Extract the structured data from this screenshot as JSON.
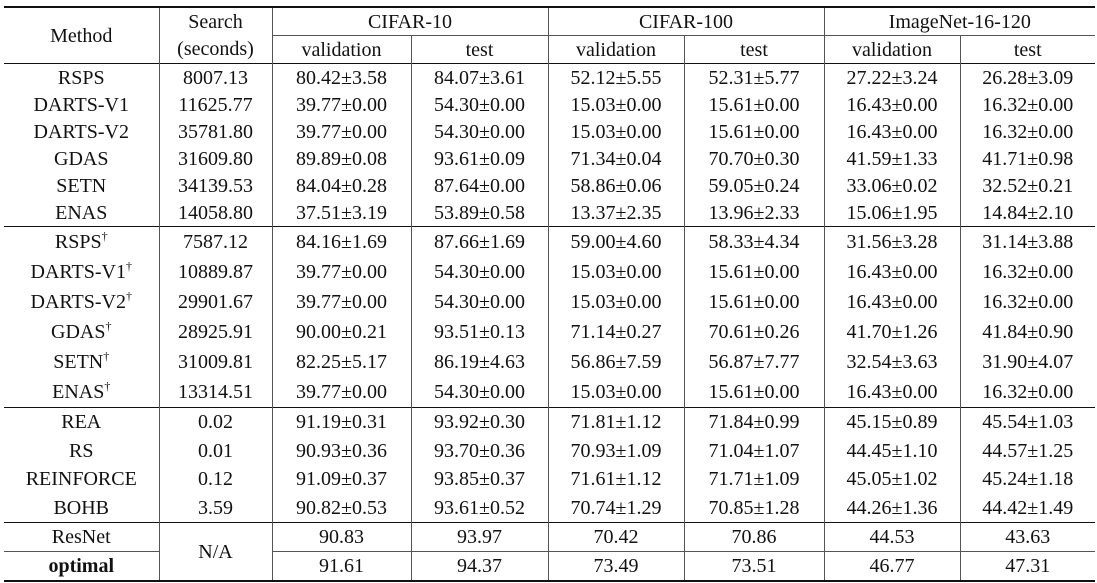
{
  "header": {
    "method": "Method",
    "search_line1": "Search",
    "search_line2": "(seconds)",
    "datasets": [
      "CIFAR-10",
      "CIFAR-100",
      "ImageNet-16-120"
    ],
    "validation": "validation",
    "test": "test"
  },
  "rows": [
    {
      "method": "RSPS",
      "mark": "",
      "search": "8007.13",
      "values": [
        "80.42±3.58",
        "84.07±3.61",
        "52.12±5.55",
        "52.31±5.77",
        "27.22±3.24",
        "26.28±3.09"
      ]
    },
    {
      "method": "DARTS-V1",
      "mark": "",
      "search": "11625.77",
      "values": [
        "39.77±0.00",
        "54.30±0.00",
        "15.03±0.00",
        "15.61±0.00",
        "16.43±0.00",
        "16.32±0.00"
      ]
    },
    {
      "method": "DARTS-V2",
      "mark": "",
      "search": "35781.80",
      "values": [
        "39.77±0.00",
        "54.30±0.00",
        "15.03±0.00",
        "15.61±0.00",
        "16.43±0.00",
        "16.32±0.00"
      ]
    },
    {
      "method": "GDAS",
      "mark": "",
      "search": "31609.80",
      "values": [
        "89.89±0.08",
        "93.61±0.09",
        "71.34±0.04",
        "70.70±0.30",
        "41.59±1.33",
        "41.71±0.98"
      ]
    },
    {
      "method": "SETN",
      "mark": "",
      "search": "34139.53",
      "values": [
        "84.04±0.28",
        "87.64±0.00",
        "58.86±0.06",
        "59.05±0.24",
        "33.06±0.02",
        "32.52±0.21"
      ]
    },
    {
      "method": "ENAS",
      "mark": "",
      "search": "14058.80",
      "values": [
        "37.51±3.19",
        "53.89±0.58",
        "13.37±2.35",
        "13.96±2.33",
        "15.06±1.95",
        "14.84±2.10"
      ]
    },
    {
      "method": "RSPS",
      "mark": "†",
      "search": "7587.12",
      "values": [
        "84.16±1.69",
        "87.66±1.69",
        "59.00±4.60",
        "58.33±4.34",
        "31.56±3.28",
        "31.14±3.88"
      ]
    },
    {
      "method": "DARTS-V1",
      "mark": "†",
      "search": "10889.87",
      "values": [
        "39.77±0.00",
        "54.30±0.00",
        "15.03±0.00",
        "15.61±0.00",
        "16.43±0.00",
        "16.32±0.00"
      ]
    },
    {
      "method": "DARTS-V2",
      "mark": "†",
      "search": "29901.67",
      "values": [
        "39.77±0.00",
        "54.30±0.00",
        "15.03±0.00",
        "15.61±0.00",
        "16.43±0.00",
        "16.32±0.00"
      ]
    },
    {
      "method": "GDAS",
      "mark": "†",
      "search": "28925.91",
      "values": [
        "90.00±0.21",
        "93.51±0.13",
        "71.14±0.27",
        "70.61±0.26",
        "41.70±1.26",
        "41.84±0.90"
      ]
    },
    {
      "method": "SETN",
      "mark": "†",
      "search": "31009.81",
      "values": [
        "82.25±5.17",
        "86.19±4.63",
        "56.86±7.59",
        "56.87±7.77",
        "32.54±3.63",
        "31.90±4.07"
      ]
    },
    {
      "method": "ENAS",
      "mark": "†",
      "search": "13314.51",
      "values": [
        "39.77±0.00",
        "54.30±0.00",
        "15.03±0.00",
        "15.61±0.00",
        "16.43±0.00",
        "16.32±0.00"
      ]
    },
    {
      "method": "REA",
      "mark": "",
      "search": "0.02",
      "values": [
        "91.19±0.31",
        "93.92±0.30",
        "71.81±1.12",
        "71.84±0.99",
        "45.15±0.89",
        "45.54±1.03"
      ]
    },
    {
      "method": "RS",
      "mark": "",
      "search": "0.01",
      "values": [
        "90.93±0.36",
        "93.70±0.36",
        "70.93±1.09",
        "71.04±1.07",
        "44.45±1.10",
        "44.57±1.25"
      ]
    },
    {
      "method": "REINFORCE",
      "mark": "",
      "search": "0.12",
      "values": [
        "91.09±0.37",
        "93.85±0.37",
        "71.61±1.12",
        "71.71±1.09",
        "45.05±1.02",
        "45.24±1.18"
      ]
    },
    {
      "method": "BOHB",
      "mark": "",
      "search": "3.59",
      "values": [
        "90.82±0.53",
        "93.61±0.52",
        "70.74±1.29",
        "70.85±1.28",
        "44.26±1.36",
        "44.42±1.49"
      ]
    },
    {
      "method": "ResNet",
      "mark": "",
      "search": "N/A",
      "values": [
        "90.83",
        "93.97",
        "70.42",
        "70.86",
        "44.53",
        "43.63"
      ]
    },
    {
      "method": "optimal",
      "mark": "",
      "search": "",
      "values": [
        "91.61",
        "94.37",
        "73.49",
        "73.51",
        "46.77",
        "47.31"
      ]
    }
  ]
}
